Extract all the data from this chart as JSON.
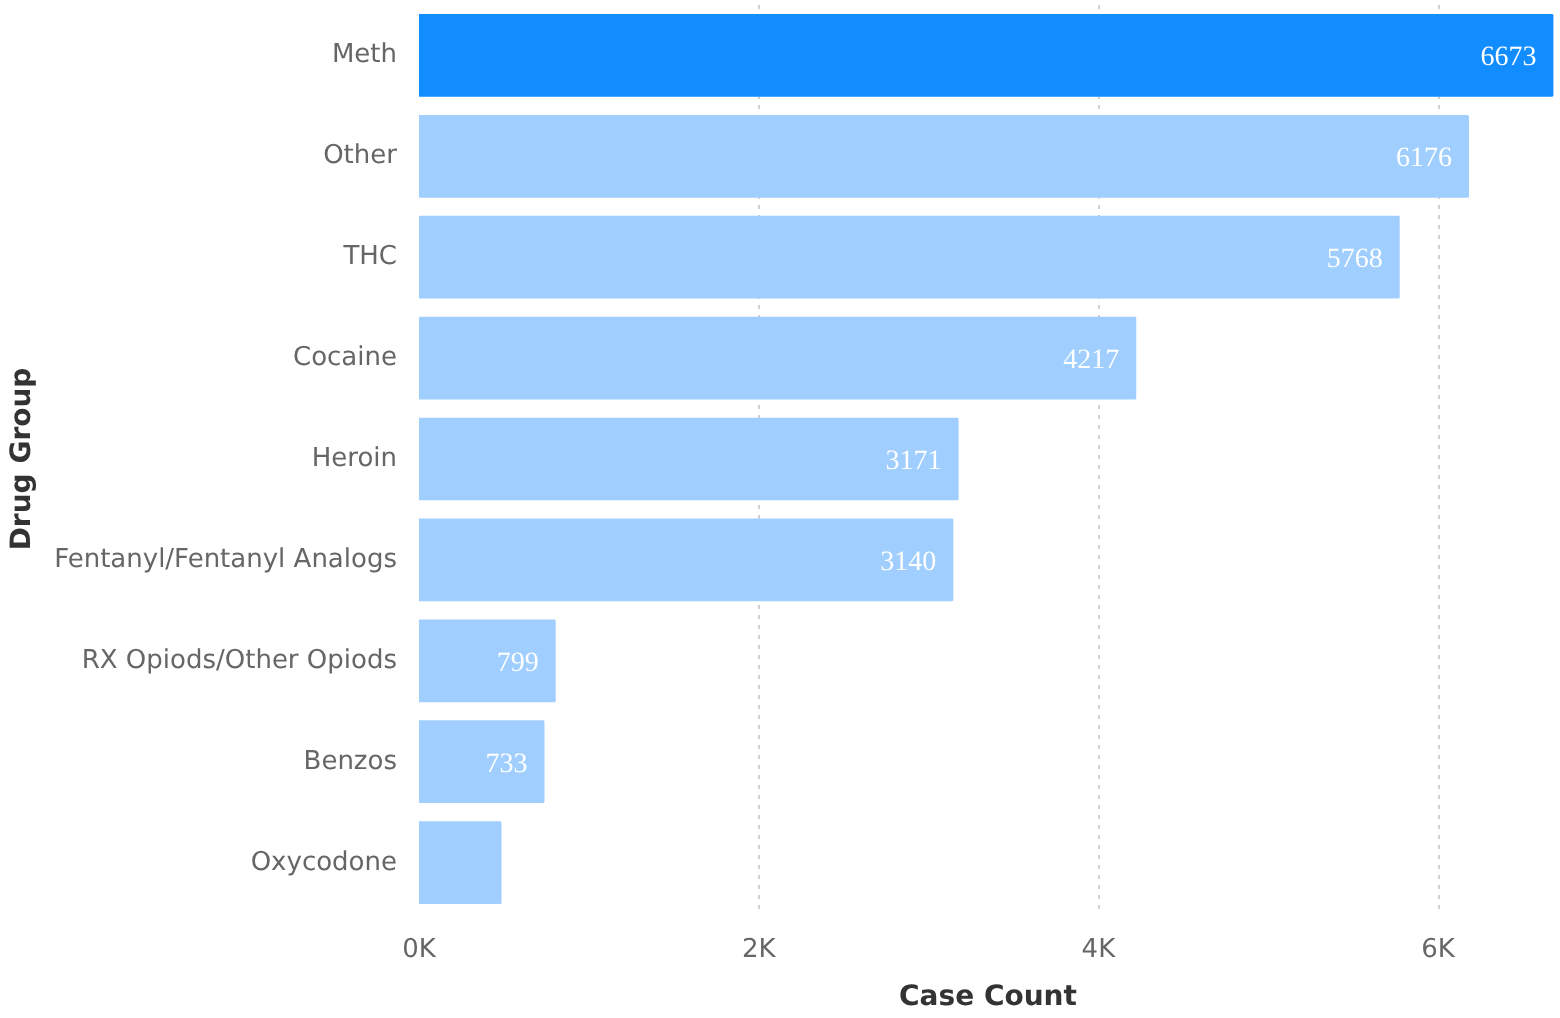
{
  "chart_data": {
    "type": "bar",
    "orientation": "horizontal",
    "xlabel": "Case Count",
    "ylabel": "Drug Group",
    "categories": [
      "Meth",
      "Other",
      "THC",
      "Cocaine",
      "Heroin",
      "Fentanyl/Fentanyl Analogs",
      "RX Opiods/Other Opiods",
      "Benzos",
      "Oxycodone"
    ],
    "values": [
      6673,
      6176,
      5768,
      4217,
      3171,
      3140,
      799,
      733,
      480
    ],
    "colors": [
      "#118dff",
      "#a0cfff",
      "#a0cfff",
      "#a0cfff",
      "#a0cfff",
      "#a0cfff",
      "#a0cfff",
      "#a0cfff",
      "#a0cfff"
    ],
    "value_labels": [
      "6673",
      "6176",
      "5768",
      "4217",
      "3171",
      "3140",
      "799",
      "733",
      null
    ],
    "xlim": [
      0,
      6700
    ],
    "xticks": [
      {
        "value": 0,
        "label": "0K"
      },
      {
        "value": 2000,
        "label": "2K"
      },
      {
        "value": 4000,
        "label": "4K"
      },
      {
        "value": 6000,
        "label": "6K"
      }
    ],
    "grid": "x"
  }
}
